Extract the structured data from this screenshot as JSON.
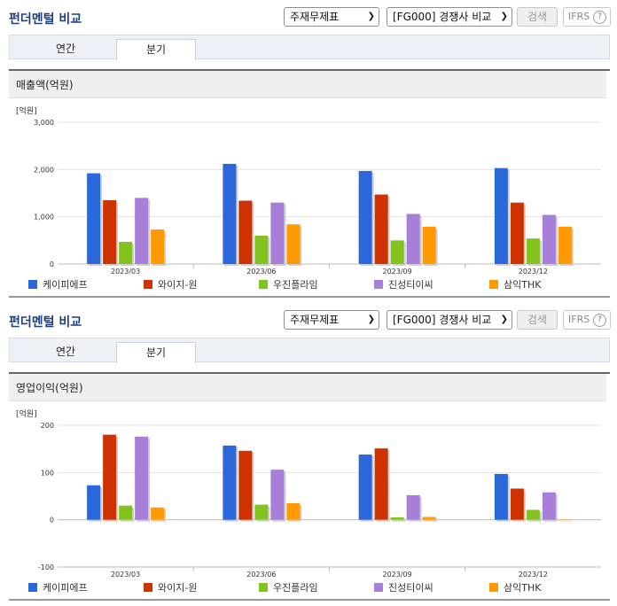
{
  "sections": [
    {
      "title": "펀더멘털 비교",
      "select1": "주재무제표",
      "select2": "[FG000] 경쟁사 비교",
      "search_label": "검색",
      "ifrs_label": "IFRS",
      "ifrs_help": "?",
      "tabs": [
        "연간",
        "분기"
      ],
      "active_tab": 1,
      "chart_title": "매출액(억원)",
      "unit": "[억원]"
    },
    {
      "title": "펀더멘털 비교",
      "select1": "주재무제표",
      "select2": "[FG000] 경쟁사 비교",
      "search_label": "검색",
      "ifrs_label": "IFRS",
      "ifrs_help": "?",
      "tabs": [
        "연간",
        "분기"
      ],
      "active_tab": 1,
      "chart_title": "영업이익(억원)",
      "unit": "[억원]"
    }
  ],
  "colors": [
    "#2a67d8",
    "#cc3300",
    "#83c31f",
    "#a77ed8",
    "#ff9a00"
  ],
  "chart_data": [
    {
      "type": "bar",
      "title": "매출액(억원)",
      "ylabel": "[억원]",
      "categories": [
        "2023/03",
        "2023/06",
        "2023/09",
        "2023/12"
      ],
      "ylim": [
        0,
        3000
      ],
      "yticks": [
        0,
        1000,
        2000,
        3000
      ],
      "ytick_labels": [
        "0",
        "1,000",
        "2,000",
        "3,000"
      ],
      "grid": true,
      "legend": "bottom",
      "series": [
        {
          "name": "케이피에프",
          "values": [
            1920,
            2120,
            1970,
            2030
          ]
        },
        {
          "name": "와이지-원",
          "values": [
            1350,
            1340,
            1470,
            1300
          ]
        },
        {
          "name": "우진플라임",
          "values": [
            470,
            600,
            500,
            540
          ]
        },
        {
          "name": "진성티이씨",
          "values": [
            1400,
            1300,
            1060,
            1040
          ]
        },
        {
          "name": "삼익THK",
          "values": [
            730,
            840,
            790,
            790
          ]
        }
      ]
    },
    {
      "type": "bar",
      "title": "영업이익(억원)",
      "ylabel": "[억원]",
      "categories": [
        "2023/03",
        "2023/06",
        "2023/09",
        "2023/12"
      ],
      "ylim": [
        -100,
        200
      ],
      "yticks": [
        -100,
        0,
        100,
        200
      ],
      "ytick_labels": [
        "-100",
        "0",
        "100",
        "200"
      ],
      "grid": true,
      "legend": "bottom",
      "series": [
        {
          "name": "케이피에프",
          "values": [
            73,
            157,
            138,
            97
          ]
        },
        {
          "name": "와이지-원",
          "values": [
            180,
            146,
            151,
            66
          ]
        },
        {
          "name": "우진플라임",
          "values": [
            30,
            32,
            5,
            21
          ]
        },
        {
          "name": "진성티이씨",
          "values": [
            176,
            106,
            52,
            58
          ]
        },
        {
          "name": "삼익THK",
          "values": [
            26,
            35,
            6,
            0
          ]
        }
      ]
    }
  ]
}
